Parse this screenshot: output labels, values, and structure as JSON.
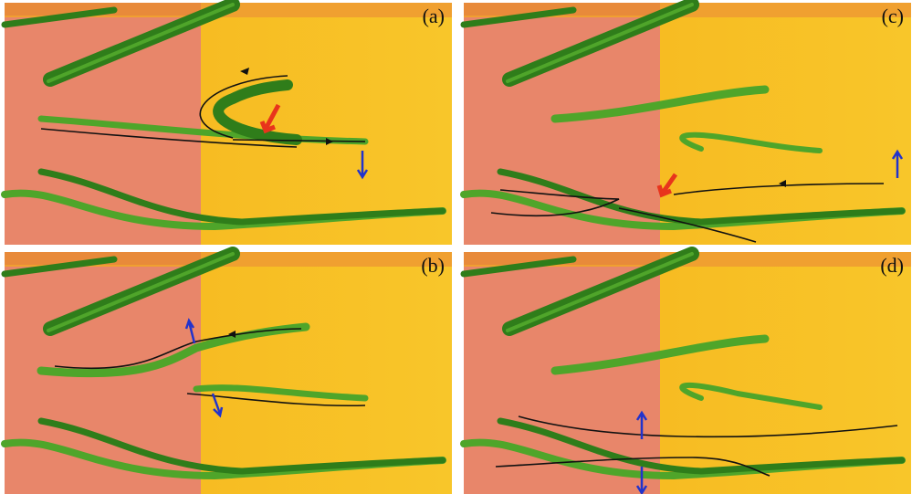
{
  "panels": [
    {
      "label": "(a)"
    },
    {
      "label": "(c)"
    },
    {
      "label": "(b)"
    },
    {
      "label": "(d)"
    }
  ]
}
